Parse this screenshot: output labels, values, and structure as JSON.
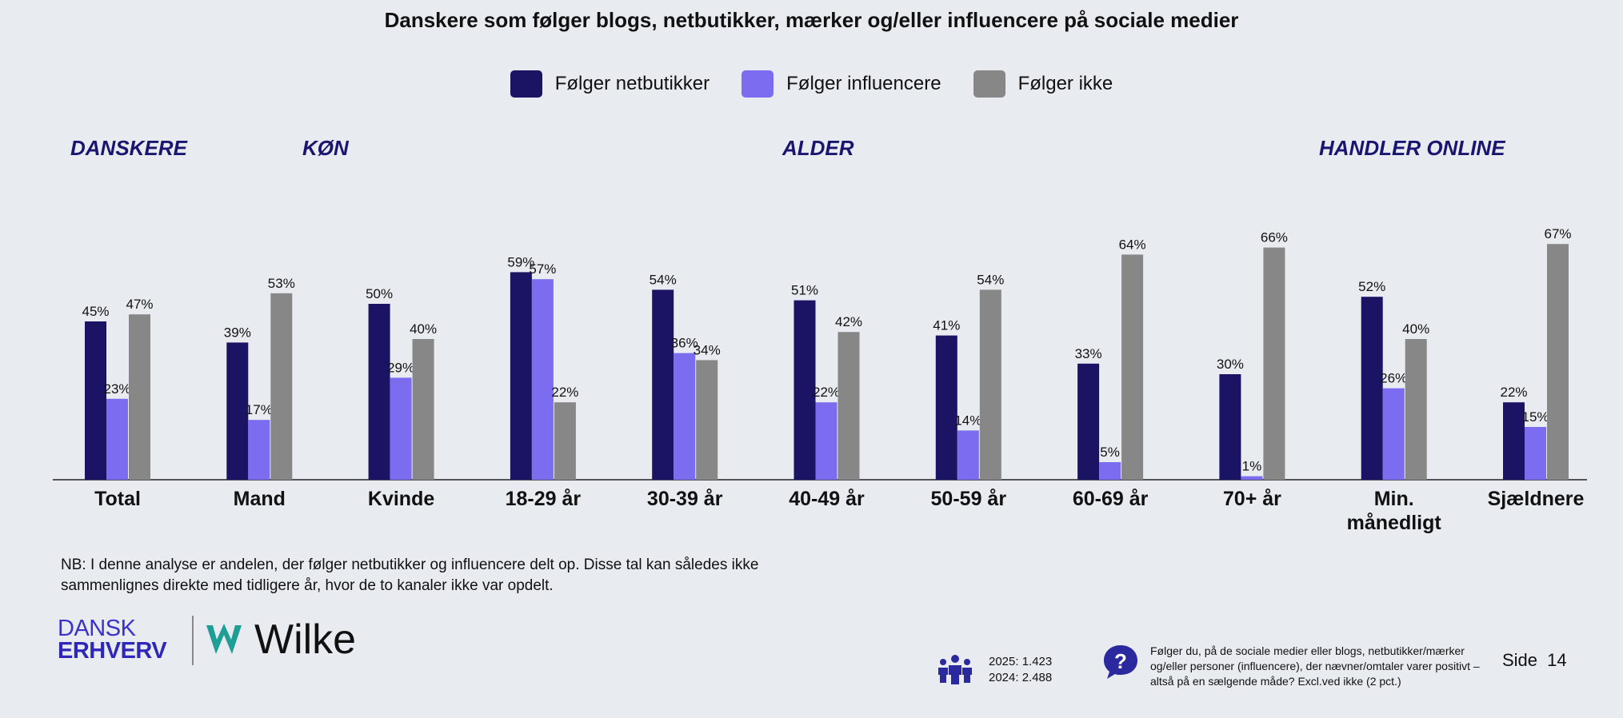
{
  "title": "Danskere som følger blogs, netbutikker, mærker og/eller influencere på sociale medier",
  "groups": {
    "danskere": "DANSKERE",
    "kon": "KØN",
    "alder": "ALDER",
    "handler": "HANDLER ONLINE"
  },
  "colors": {
    "netbutikker": "#1b1464",
    "influencere": "#7b6cf0",
    "ikke": "#878787"
  },
  "chart_data": {
    "type": "bar",
    "title": "Danskere som følger blogs, netbutikker, mærker og/eller influencere på sociale medier",
    "categories": [
      "Total",
      "Mand",
      "Kvinde",
      "18-29 år",
      "30-39 år",
      "40-49 år",
      "50-59 år",
      "60-69 år",
      "70+ år",
      "Min. månedligt",
      "Sjældnere"
    ],
    "category_lines": [
      [
        "Total"
      ],
      [
        "Mand"
      ],
      [
        "Kvinde"
      ],
      [
        "18-29 år"
      ],
      [
        "30-39 år"
      ],
      [
        "40-49 år"
      ],
      [
        "50-59 år"
      ],
      [
        "60-69 år"
      ],
      [
        "70+ år"
      ],
      [
        "Min.",
        "månedligt"
      ],
      [
        "Sjældnere"
      ]
    ],
    "series": [
      {
        "name": "Følger netbutikker",
        "values": [
          45,
          39,
          50,
          59,
          54,
          51,
          41,
          33,
          30,
          52,
          22
        ]
      },
      {
        "name": "Følger influencere",
        "values": [
          23,
          17,
          29,
          57,
          36,
          22,
          14,
          5,
          1,
          26,
          15
        ]
      },
      {
        "name": "Følger ikke",
        "values": [
          47,
          53,
          40,
          22,
          34,
          42,
          54,
          64,
          66,
          40,
          67
        ]
      }
    ],
    "unit": "%",
    "ylim": [
      0,
      100
    ],
    "grid": false,
    "legend": "top-center"
  },
  "note": "NB: I denne analyse er andelen, der følger netbutikker og influencere delt op. Disse tal kan således ikke sammenlignes direkte med tidligere år, hvor de to kanaler ikke var opdelt.",
  "logo": {
    "dansk_line1": "DANSK",
    "dansk_line2": "ERHVERV",
    "wilke": "Wilke"
  },
  "sample": {
    "line1": "2025: 1.423",
    "line2": "2024: 2.488"
  },
  "question": "Følger du, på de sociale medier eller blogs, netbutikker/mærker og/eller personer (influencere), der nævner/omtaler varer positivt – altså på en sælgende måde? Excl.ved ikke (2 pct.)",
  "page": "Side 14",
  "icons": [
    "people-icon",
    "question-bubble-icon",
    "wilke-logo-icon"
  ]
}
